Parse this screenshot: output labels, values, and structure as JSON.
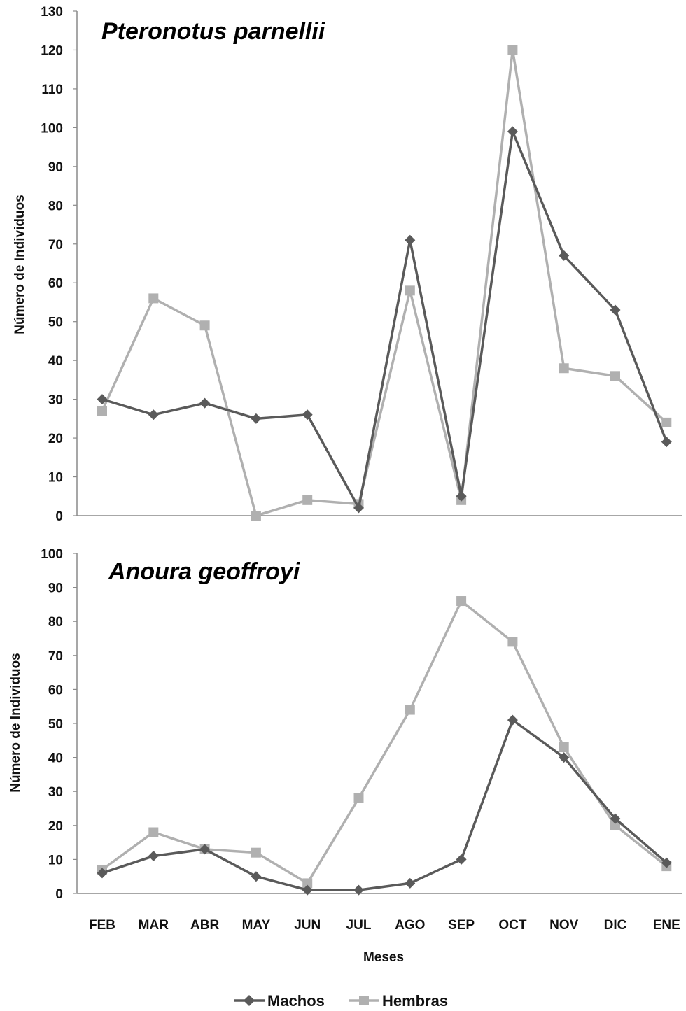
{
  "chart_data": [
    {
      "type": "line",
      "title": "Pteronotus parnellii",
      "xlabel": "",
      "ylabel": "Número de Individuos",
      "ylim": [
        0,
        130
      ],
      "yticks": [
        0,
        10,
        20,
        30,
        40,
        50,
        60,
        70,
        80,
        90,
        100,
        110,
        120,
        130
      ],
      "categories": [
        "FEB",
        "MAR",
        "ABR",
        "MAY",
        "JUN",
        "JUL",
        "AGO",
        "SEP",
        "OCT",
        "NOV",
        "DIC",
        "ENE"
      ],
      "show_category_labels": false,
      "grid": false,
      "series": [
        {
          "name": "Machos",
          "color": "#5a5a5a",
          "marker": "diamond",
          "values": [
            30,
            26,
            29,
            25,
            26,
            2,
            71,
            5,
            99,
            67,
            53,
            19
          ]
        },
        {
          "name": "Hembras",
          "color": "#b0b0b0",
          "marker": "square",
          "values": [
            27,
            56,
            49,
            0,
            4,
            3,
            58,
            4,
            120,
            38,
            36,
            24
          ]
        }
      ]
    },
    {
      "type": "line",
      "title": "Anoura geoffroyi",
      "xlabel": "Meses",
      "ylabel": "Número de Individuos",
      "ylim": [
        0,
        100
      ],
      "yticks": [
        0,
        10,
        20,
        30,
        40,
        50,
        60,
        70,
        80,
        90,
        100
      ],
      "categories": [
        "FEB",
        "MAR",
        "ABR",
        "MAY",
        "JUN",
        "JUL",
        "AGO",
        "SEP",
        "OCT",
        "NOV",
        "DIC",
        "ENE"
      ],
      "show_category_labels": true,
      "grid": false,
      "series": [
        {
          "name": "Machos",
          "color": "#5a5a5a",
          "marker": "diamond",
          "values": [
            6,
            11,
            13,
            5,
            1,
            1,
            3,
            10,
            51,
            40,
            22,
            9
          ]
        },
        {
          "name": "Hembras",
          "color": "#b0b0b0",
          "marker": "square",
          "values": [
            7,
            18,
            13,
            12,
            3,
            28,
            54,
            86,
            74,
            43,
            20,
            8
          ]
        }
      ]
    }
  ],
  "legend": {
    "position": "bottom-center",
    "items": [
      {
        "label": "Machos",
        "color": "#5a5a5a",
        "marker": "diamond"
      },
      {
        "label": "Hembras",
        "color": "#b0b0b0",
        "marker": "square"
      }
    ]
  }
}
